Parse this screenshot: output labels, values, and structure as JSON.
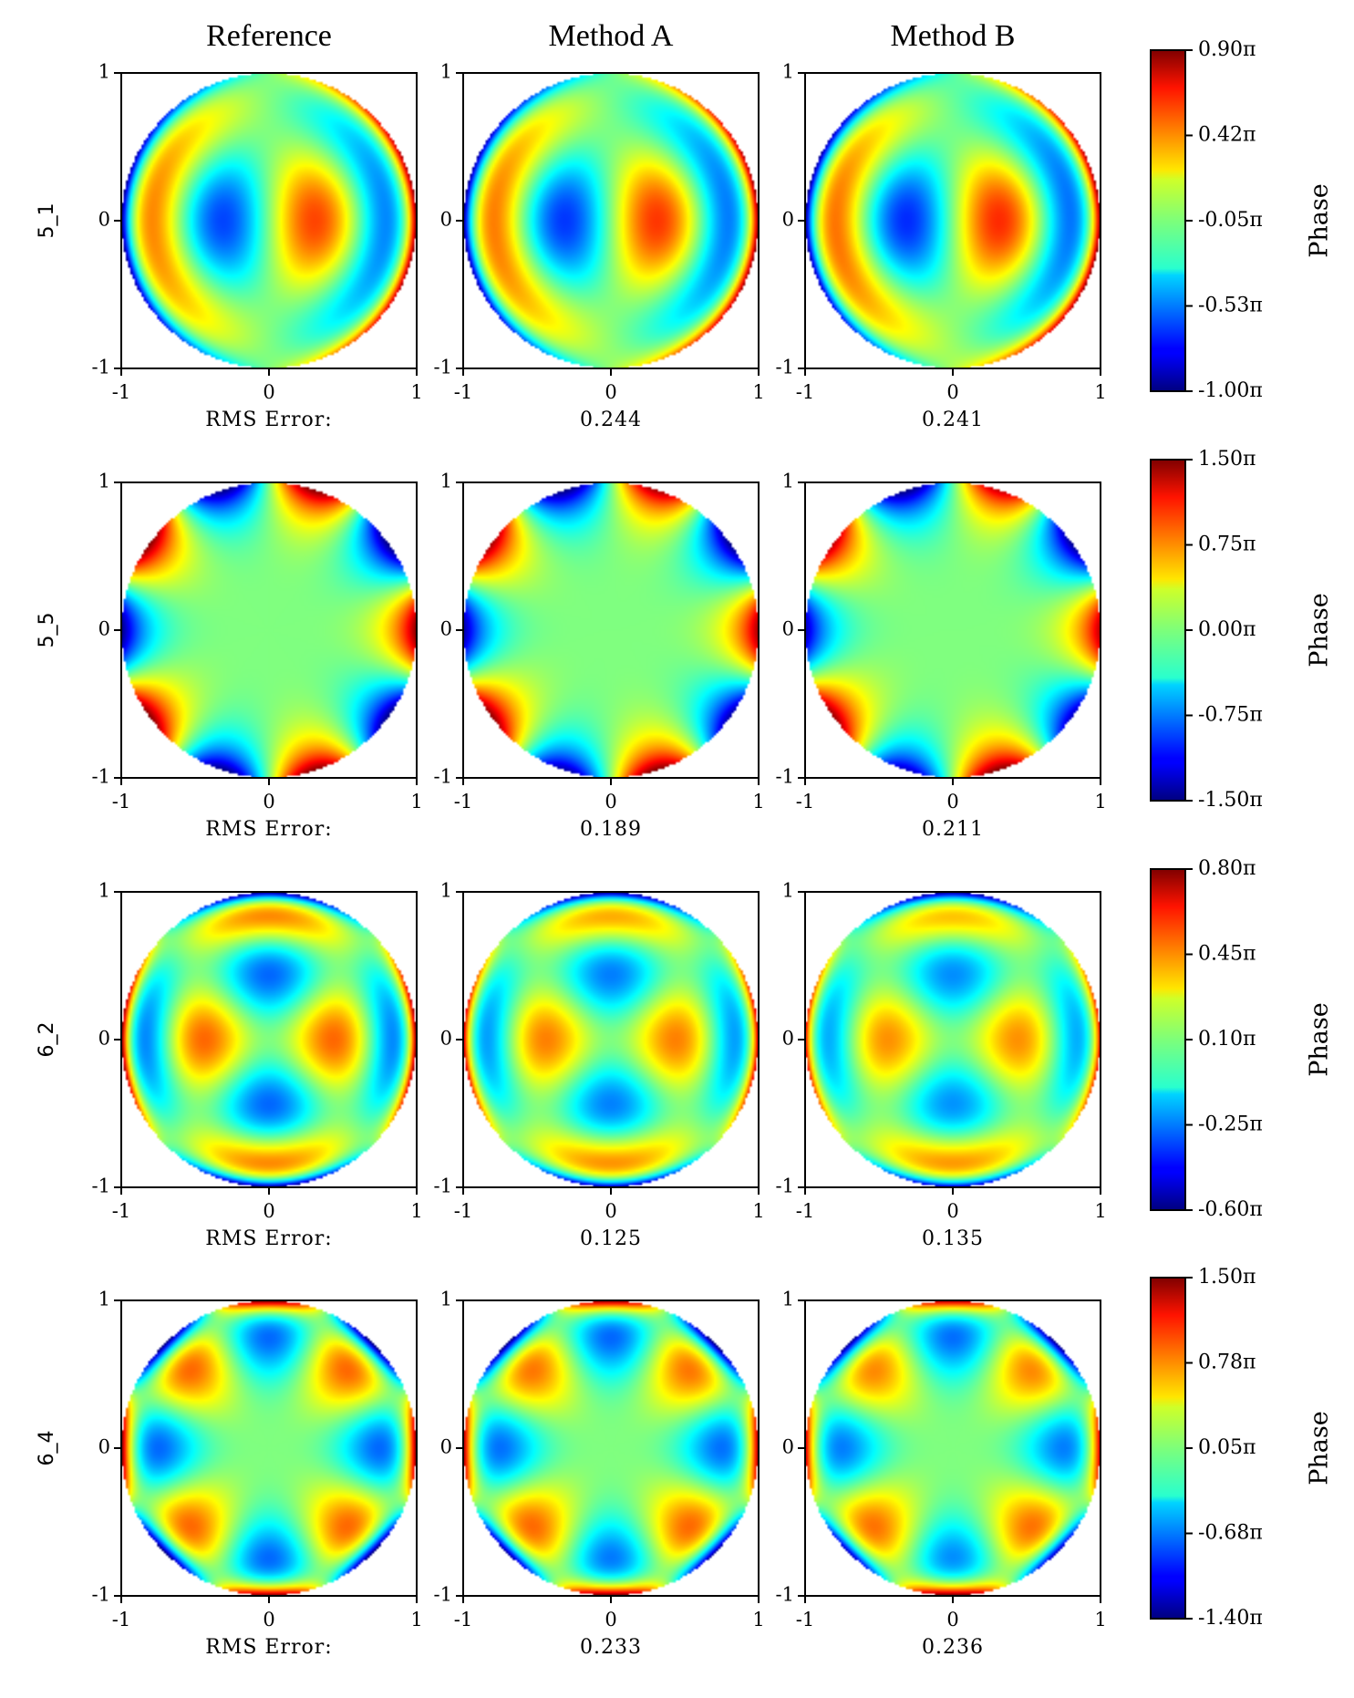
{
  "chart_data": [
    {
      "type": "heatmap",
      "title": "",
      "columns": [
        "Reference",
        "Method A",
        "Method B"
      ],
      "rows": [
        {
          "label": "5_1",
          "n": 5,
          "m": 1,
          "error_label": "RMS Error:",
          "rms_errors": [
            null,
            "0.244",
            "0.241"
          ],
          "colorbar": {
            "label": "Phase",
            "range": [
              -1.0,
              0.9
            ],
            "ticks": [
              "0.90π",
              "0.42π",
              "-0.05π",
              "-0.53π",
              "-1.00π"
            ]
          }
        },
        {
          "label": "5_5",
          "n": 5,
          "m": 5,
          "error_label": "RMS Error:",
          "rms_errors": [
            null,
            "0.189",
            "0.211"
          ],
          "colorbar": {
            "label": "Phase",
            "range": [
              -1.5,
              1.5
            ],
            "ticks": [
              "1.50π",
              "0.75π",
              "0.00π",
              "-0.75π",
              "-1.50π"
            ]
          }
        },
        {
          "label": "6_2",
          "n": 6,
          "m": 2,
          "error_label": "RMS Error:",
          "rms_errors": [
            null,
            "0.125",
            "0.135"
          ],
          "colorbar": {
            "label": "Phase",
            "range": [
              -0.6,
              0.8
            ],
            "ticks": [
              "0.80π",
              "0.45π",
              "0.10π",
              "-0.25π",
              "-0.60π"
            ]
          }
        },
        {
          "label": "6_4",
          "n": 6,
          "m": 4,
          "error_label": "RMS Error:",
          "rms_errors": [
            null,
            "0.233",
            "0.236"
          ],
          "colorbar": {
            "label": "Phase",
            "range": [
              -1.4,
              1.5
            ],
            "ticks": [
              "1.50π",
              "0.78π",
              "0.05π",
              "-0.68π",
              "-1.40π"
            ]
          }
        }
      ],
      "axes": {
        "xlim": [
          -1,
          1
        ],
        "ylim": [
          -1,
          1
        ],
        "xticks": [
          "-1",
          "0",
          "1"
        ],
        "yticks": [
          "1",
          "0",
          "-1"
        ]
      },
      "colormap": "jet",
      "grid": false
    }
  ]
}
